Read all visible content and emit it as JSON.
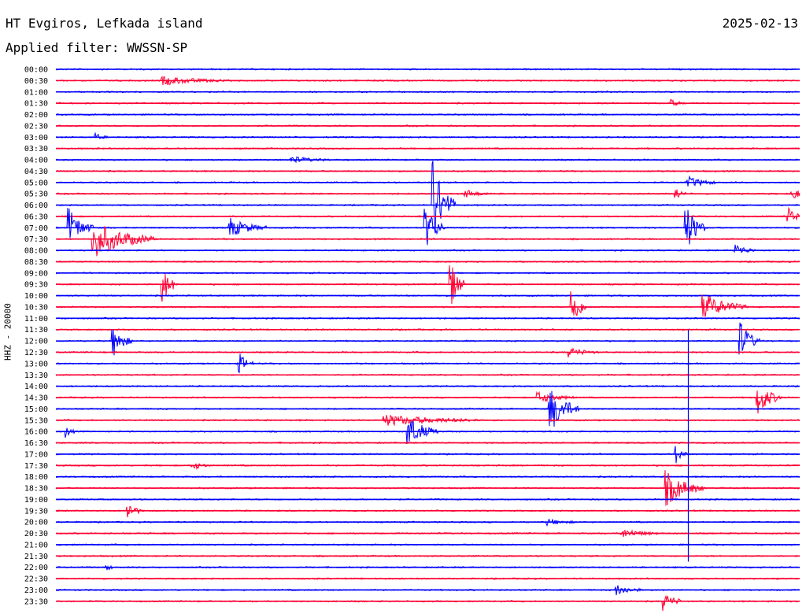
{
  "header": {
    "station": "HT Evgiros, Lefkada island",
    "date": "2025-02-13",
    "filter": "Applied filter: WWSSN-SP"
  },
  "colors": {
    "blue": "#0000ff",
    "red": "#ff0033",
    "text": "#000000",
    "background": "#ffffff"
  },
  "chart_data": {
    "type": "line",
    "title": "",
    "ylabel": "HHZ - 20000",
    "xlabel": "",
    "trace_colors": [
      "#0000ff",
      "#ff0033"
    ],
    "rows": [
      "00:00",
      "00:30",
      "01:00",
      "01:30",
      "02:00",
      "02:30",
      "03:00",
      "03:30",
      "04:00",
      "04:30",
      "05:00",
      "05:30",
      "06:00",
      "06:30",
      "07:00",
      "07:30",
      "08:00",
      "08:30",
      "09:00",
      "09:30",
      "10:00",
      "10:30",
      "11:00",
      "11:30",
      "12:00",
      "12:30",
      "13:00",
      "13:30",
      "14:00",
      "14:30",
      "15:00",
      "15:30",
      "16:00",
      "16:30",
      "17:00",
      "17:30",
      "18:00",
      "18:30",
      "19:00",
      "19:30",
      "20:00",
      "20:30",
      "21:00",
      "21:30",
      "22:00",
      "22:30",
      "23:00",
      "23:30"
    ],
    "events": [
      {
        "row": "00:30",
        "minute": 4.3,
        "amp": 0.4,
        "dur": 2.5
      },
      {
        "row": "01:30",
        "minute": 24.8,
        "amp": 0.3,
        "dur": 0.6
      },
      {
        "row": "03:00",
        "minute": 1.6,
        "amp": 0.3,
        "dur": 0.5
      },
      {
        "row": "04:00",
        "minute": 9.5,
        "amp": 0.3,
        "dur": 1.5
      },
      {
        "row": "05:00",
        "minute": 25.5,
        "amp": 0.5,
        "dur": 1.2
      },
      {
        "row": "05:30",
        "minute": 16.5,
        "amp": 0.4,
        "dur": 1.0
      },
      {
        "row": "05:30",
        "minute": 25.0,
        "amp": 0.6,
        "dur": 0.4
      },
      {
        "row": "05:30",
        "minute": 29.7,
        "amp": 0.7,
        "dur": 0.5
      },
      {
        "row": "06:00",
        "minute": 15.2,
        "amp": 4.0,
        "dur": 0.9
      },
      {
        "row": "06:30",
        "minute": 29.5,
        "amp": 0.9,
        "dur": 0.8
      },
      {
        "row": "07:00",
        "minute": 0.5,
        "amp": 1.8,
        "dur": 1.0
      },
      {
        "row": "07:00",
        "minute": 7.0,
        "amp": 0.9,
        "dur": 1.5
      },
      {
        "row": "07:00",
        "minute": 14.9,
        "amp": 2.0,
        "dur": 0.8
      },
      {
        "row": "07:00",
        "minute": 25.4,
        "amp": 2.3,
        "dur": 0.8
      },
      {
        "row": "07:30",
        "minute": 1.5,
        "amp": 1.7,
        "dur": 2.5
      },
      {
        "row": "08:00",
        "minute": 27.4,
        "amp": 0.6,
        "dur": 0.8
      },
      {
        "row": "09:30",
        "minute": 4.3,
        "amp": 1.8,
        "dur": 0.6
      },
      {
        "row": "09:30",
        "minute": 15.9,
        "amp": 2.4,
        "dur": 0.6
      },
      {
        "row": "10:30",
        "minute": 20.8,
        "amp": 2.1,
        "dur": 0.6
      },
      {
        "row": "10:30",
        "minute": 26.1,
        "amp": 1.2,
        "dur": 1.8
      },
      {
        "row": "12:00",
        "minute": 2.3,
        "amp": 1.4,
        "dur": 0.8
      },
      {
        "row": "12:00",
        "minute": 27.6,
        "amp": 1.8,
        "dur": 0.8
      },
      {
        "row": "12:30",
        "minute": 20.7,
        "amp": 0.4,
        "dur": 1.2
      },
      {
        "row": "13:00",
        "minute": 7.4,
        "amp": 0.9,
        "dur": 0.6
      },
      {
        "row": "14:30",
        "minute": 19.4,
        "amp": 0.5,
        "dur": 1.5
      },
      {
        "row": "14:30",
        "minute": 28.3,
        "amp": 1.5,
        "dur": 1.0
      },
      {
        "row": "15:00",
        "minute": 19.9,
        "amp": 2.2,
        "dur": 1.2
      },
      {
        "row": "15:30",
        "minute": 13.2,
        "amp": 0.5,
        "dur": 4.0
      },
      {
        "row": "16:00",
        "minute": 14.2,
        "amp": 1.4,
        "dur": 1.2
      },
      {
        "row": "16:00",
        "minute": 0.4,
        "amp": 0.5,
        "dur": 0.4
      },
      {
        "row": "17:00",
        "minute": 25.0,
        "amp": 0.8,
        "dur": 0.5
      },
      {
        "row": "17:30",
        "minute": 5.5,
        "amp": 0.4,
        "dur": 0.7
      },
      {
        "row": "18:30",
        "minute": 24.6,
        "amp": 1.6,
        "dur": 1.5
      },
      {
        "row": "19:30",
        "minute": 2.9,
        "amp": 0.8,
        "dur": 0.6
      },
      {
        "row": "20:00",
        "minute": 19.8,
        "amp": 0.3,
        "dur": 1.2
      },
      {
        "row": "20:30",
        "minute": 22.8,
        "amp": 0.4,
        "dur": 1.5
      },
      {
        "row": "22:00",
        "minute": 2.0,
        "amp": 0.3,
        "dur": 0.4
      },
      {
        "row": "23:00",
        "minute": 22.6,
        "amp": 0.5,
        "dur": 1.0
      },
      {
        "row": "23:30",
        "minute": 24.5,
        "amp": 0.8,
        "dur": 0.8
      }
    ],
    "spikes": [
      {
        "row": "12:30",
        "minute": 25.0,
        "span": 18.5
      }
    ]
  }
}
